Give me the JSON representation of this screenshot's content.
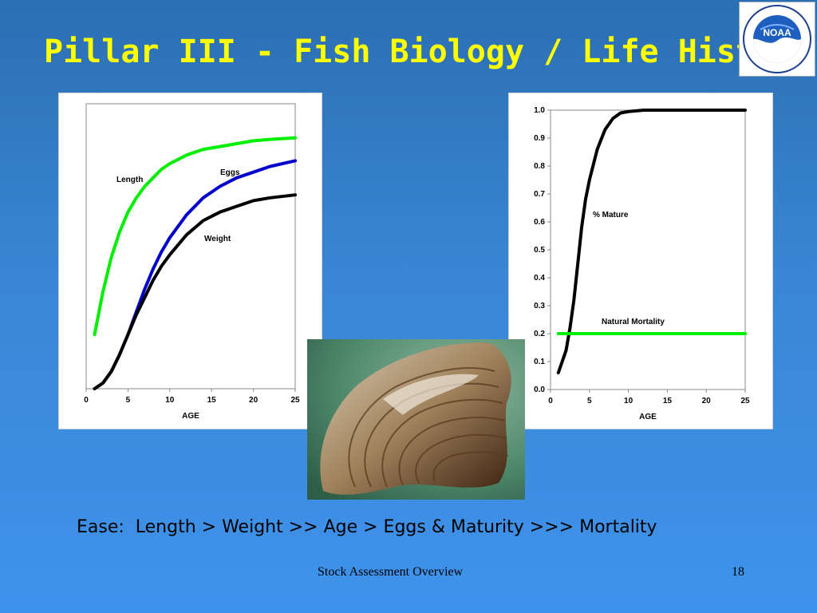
{
  "slide": {
    "title": "Pillar III - Fish Biology / Life History",
    "ease_text": "Ease:  Length > Weight >> Age > Eggs & Maturity >>> Mortality",
    "footer": "Stock Assessment Overview",
    "page_number": "18"
  },
  "logo": {
    "text": "NOAA"
  },
  "colors": {
    "length": "#00ee00",
    "eggs": "#0000cc",
    "weight": "#000000",
    "mature": "#000000",
    "mortality": "#00ee00"
  },
  "chart_data": [
    {
      "type": "line",
      "title": "",
      "xlabel": "AGE",
      "ylabel": "",
      "xlim": [
        0,
        25
      ],
      "ylim": [
        0,
        1
      ],
      "x_ticks": [
        "0",
        "5",
        "10",
        "15",
        "20",
        "25"
      ],
      "grid": false,
      "series": [
        {
          "name": "Length",
          "x": [
            1,
            2,
            3,
            4,
            5,
            6,
            7,
            8,
            9,
            10,
            12,
            14,
            16,
            18,
            20,
            22,
            25
          ],
          "values": [
            0.19,
            0.34,
            0.46,
            0.55,
            0.62,
            0.67,
            0.71,
            0.74,
            0.77,
            0.79,
            0.82,
            0.84,
            0.85,
            0.86,
            0.87,
            0.875,
            0.88
          ]
        },
        {
          "name": "Eggs",
          "x": [
            1,
            2,
            3,
            4,
            5,
            6,
            7,
            8,
            9,
            10,
            12,
            14,
            16,
            18,
            20,
            22,
            25
          ],
          "values": [
            0.0,
            0.02,
            0.06,
            0.12,
            0.19,
            0.27,
            0.35,
            0.42,
            0.48,
            0.53,
            0.61,
            0.67,
            0.71,
            0.74,
            0.76,
            0.78,
            0.8
          ]
        },
        {
          "name": "Weight",
          "x": [
            1,
            2,
            3,
            4,
            5,
            6,
            7,
            8,
            9,
            10,
            12,
            14,
            16,
            18,
            20,
            22,
            25
          ],
          "values": [
            0.0,
            0.02,
            0.06,
            0.12,
            0.19,
            0.26,
            0.32,
            0.38,
            0.43,
            0.47,
            0.54,
            0.59,
            0.62,
            0.64,
            0.66,
            0.67,
            0.68
          ]
        }
      ]
    },
    {
      "type": "line",
      "title": "",
      "xlabel": "AGE",
      "ylabel": "",
      "xlim": [
        0,
        25
      ],
      "ylim": [
        0,
        1.0
      ],
      "x_ticks": [
        "0",
        "5",
        "10",
        "15",
        "20",
        "25"
      ],
      "y_ticks": [
        "0.0",
        "0.1",
        "0.2",
        "0.3",
        "0.4",
        "0.5",
        "0.6",
        "0.7",
        "0.8",
        "0.9",
        "1.0"
      ],
      "grid": false,
      "series": [
        {
          "name": "% Mature",
          "x": [
            1,
            2,
            2.5,
            3,
            3.5,
            4,
            4.5,
            5,
            6,
            7,
            8,
            9,
            10,
            12,
            15,
            20,
            25
          ],
          "values": [
            0.06,
            0.14,
            0.22,
            0.32,
            0.45,
            0.58,
            0.68,
            0.75,
            0.86,
            0.93,
            0.97,
            0.99,
            0.995,
            1.0,
            1.0,
            1.0,
            1.0
          ]
        },
        {
          "name": "Natural Mortality",
          "x": [
            1,
            25
          ],
          "values": [
            0.2,
            0.2
          ]
        }
      ]
    }
  ]
}
